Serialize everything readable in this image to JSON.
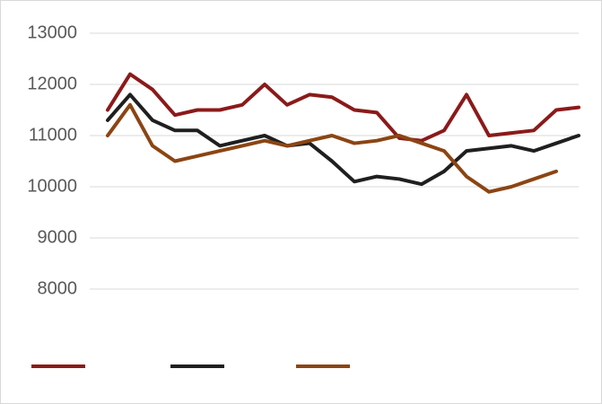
{
  "chart_data": {
    "type": "line",
    "categories": [
      null,
      null,
      null,
      null,
      null,
      null,
      null,
      null,
      null,
      null,
      null,
      null,
      null,
      null,
      null,
      null,
      null,
      null,
      null,
      null,
      null,
      null
    ],
    "series": [
      {
        "color": "#8b1a1a",
        "values": [
          11500,
          12200,
          11900,
          11400,
          11500,
          11500,
          11600,
          12000,
          11600,
          11800,
          11750,
          11500,
          11450,
          10950,
          10900,
          11100,
          11800,
          11000,
          11050,
          11100,
          11500,
          11550
        ]
      },
      {
        "color": "#1f1f1f",
        "values": [
          11300,
          11800,
          11300,
          11100,
          11100,
          10800,
          10900,
          11000,
          10800,
          10850,
          10500,
          10100,
          10200,
          10150,
          10050,
          10300,
          10700,
          10750,
          10800,
          10700,
          10850,
          11000
        ]
      },
      {
        "color": "#8b4513",
        "values": [
          11000,
          11600,
          10800,
          10500,
          10600,
          10700,
          10800,
          10900,
          10800,
          10900,
          11000,
          10850,
          10900,
          11000,
          10850,
          10700,
          10200,
          9900,
          10000,
          10150,
          10300,
          null
        ]
      }
    ],
    "ylim": [
      8000,
      13000
    ],
    "yticks": [
      8000,
      9000,
      10000,
      11000,
      12000,
      13000
    ],
    "grid": true
  }
}
